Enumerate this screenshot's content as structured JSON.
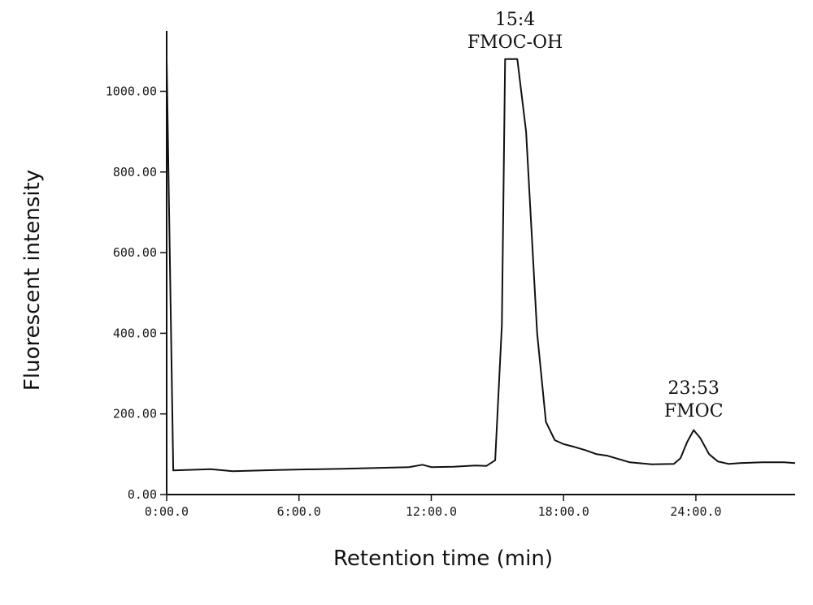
{
  "chart_data": {
    "type": "line",
    "title": "",
    "xlabel": "Retention time (min)",
    "ylabel": "Fluorescent intensity",
    "xlim": [
      0,
      28.5
    ],
    "ylim": [
      0,
      1150
    ],
    "x_ticks": [
      0,
      6,
      12,
      18,
      24
    ],
    "x_tick_labels": [
      "0:00.0",
      "6:00.0",
      "12:00.0",
      "18:00.0",
      "24:00.0"
    ],
    "y_ticks": [
      0,
      200,
      400,
      600,
      800,
      1000
    ],
    "y_tick_labels": [
      "0.00",
      "200.00",
      "400.00",
      "600.00",
      "800.00",
      "1000.00"
    ],
    "grid": false,
    "series": [
      {
        "x": [
          0.0,
          0.3,
          2.0,
          3.0,
          5.0,
          8.0,
          11.0,
          11.6,
          12.0,
          13.0,
          14.0,
          14.5,
          14.9,
          15.2,
          15.35,
          15.5,
          15.9,
          16.3,
          16.8,
          17.2,
          17.6,
          18.0,
          18.5,
          19.0,
          19.5,
          20.0,
          20.5,
          21.0,
          22.0,
          23.0,
          23.3,
          23.6,
          23.9,
          24.2,
          24.6,
          25.0,
          25.5,
          26.0,
          27.0,
          28.0,
          28.5
        ],
        "y": [
          1080,
          60,
          63,
          58,
          61,
          64,
          68,
          74,
          68,
          69,
          72,
          71,
          85,
          420,
          1080,
          1080,
          1080,
          900,
          400,
          180,
          135,
          125,
          118,
          110,
          100,
          96,
          88,
          80,
          75,
          76,
          90,
          130,
          160,
          140,
          100,
          82,
          76,
          78,
          80,
          80,
          78
        ]
      }
    ],
    "annotations": [
      {
        "lines": [
          "15:4",
          "FMOC-OH"
        ],
        "x": 15.8,
        "y": 1080
      },
      {
        "lines": [
          "23:53",
          "FMOC"
        ],
        "x": 23.9,
        "y": 165
      }
    ]
  }
}
